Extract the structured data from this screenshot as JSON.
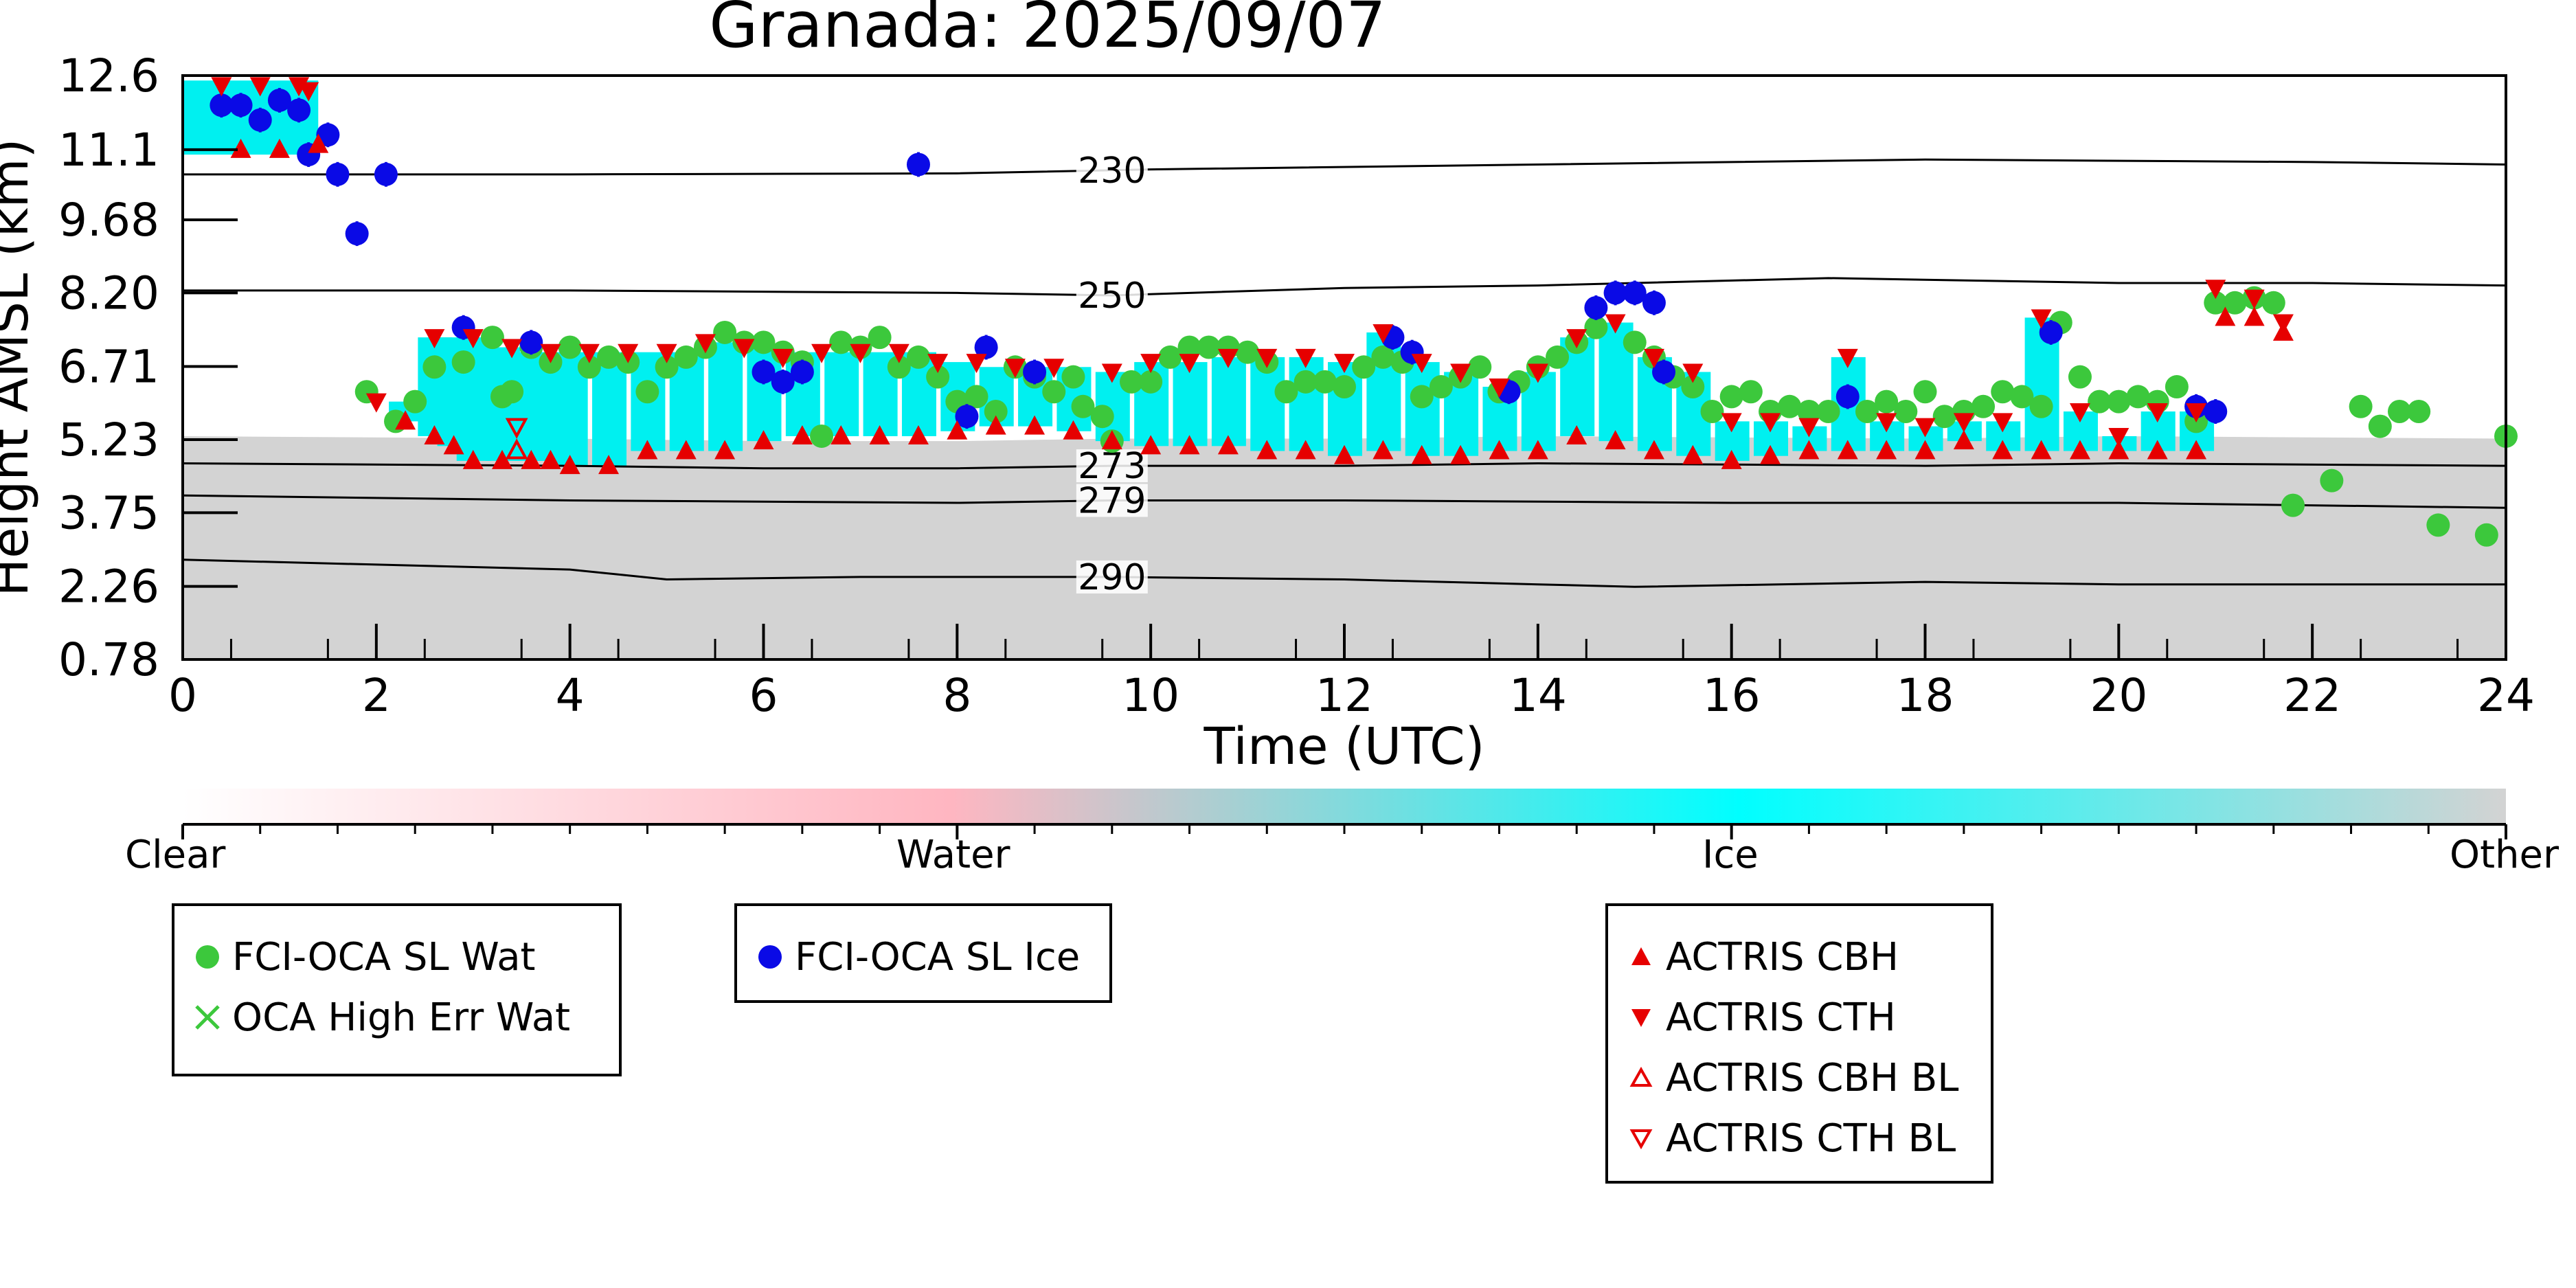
{
  "chart_data": {
    "type": "scatter",
    "title": "Granada: 2025/09/07",
    "xlabel": "Time (UTC)",
    "ylabel": "Height AMSL (km)",
    "xlim": [
      0,
      24
    ],
    "ylim": [
      0.78,
      12.6
    ],
    "xticks": [
      "0",
      "2",
      "4",
      "6",
      "8",
      "10",
      "12",
      "14",
      "16",
      "18",
      "20",
      "22",
      "24"
    ],
    "yticks": [
      "0.78",
      "2.26",
      "3.75",
      "5.23",
      "6.71",
      "8.20",
      "9.68",
      "11.1",
      "12.6"
    ],
    "isotherms": [
      {
        "label": "230",
        "points": [
          [
            0,
            10.6
          ],
          [
            4,
            10.6
          ],
          [
            8,
            10.62
          ],
          [
            10,
            10.7
          ],
          [
            14,
            10.8
          ],
          [
            18,
            10.9
          ],
          [
            22,
            10.85
          ],
          [
            24,
            10.8
          ]
        ]
      },
      {
        "label": "250",
        "points": [
          [
            0,
            8.25
          ],
          [
            4,
            8.25
          ],
          [
            8,
            8.2
          ],
          [
            9.6,
            8.15
          ],
          [
            12,
            8.3
          ],
          [
            14,
            8.35
          ],
          [
            17,
            8.5
          ],
          [
            20,
            8.4
          ],
          [
            22,
            8.4
          ],
          [
            24,
            8.35
          ]
        ]
      },
      {
        "label": "273",
        "points": [
          [
            0,
            4.75
          ],
          [
            4,
            4.7
          ],
          [
            6,
            4.65
          ],
          [
            8,
            4.65
          ],
          [
            9.6,
            4.7
          ],
          [
            12,
            4.7
          ],
          [
            14,
            4.75
          ],
          [
            18,
            4.7
          ],
          [
            20,
            4.75
          ],
          [
            24,
            4.7
          ]
        ]
      },
      {
        "label": "279",
        "points": [
          [
            0,
            4.1
          ],
          [
            4,
            4.0
          ],
          [
            8,
            3.95
          ],
          [
            9.6,
            4.0
          ],
          [
            12,
            4.0
          ],
          [
            16,
            3.95
          ],
          [
            20,
            3.95
          ],
          [
            24,
            3.85
          ]
        ]
      },
      {
        "label": "290",
        "points": [
          [
            0,
            2.8
          ],
          [
            2,
            2.7
          ],
          [
            4,
            2.6
          ],
          [
            5,
            2.4
          ],
          [
            7,
            2.45
          ],
          [
            9.6,
            2.45
          ],
          [
            12,
            2.4
          ],
          [
            14,
            2.3
          ],
          [
            15,
            2.25
          ],
          [
            18,
            2.35
          ],
          [
            20,
            2.3
          ],
          [
            24,
            2.3
          ]
        ]
      }
    ],
    "series": [
      {
        "name": "FCI-OCA SL Wat",
        "marker": "circle",
        "color": "#3cc83c",
        "points": [
          [
            1.9,
            6.2
          ],
          [
            2.2,
            5.6
          ],
          [
            2.4,
            6.0
          ],
          [
            2.6,
            6.7
          ],
          [
            2.9,
            6.8
          ],
          [
            3.2,
            7.3
          ],
          [
            3.3,
            6.1
          ],
          [
            3.4,
            6.2
          ],
          [
            3.6,
            7.1
          ],
          [
            3.8,
            6.8
          ],
          [
            4.0,
            7.1
          ],
          [
            4.2,
            6.7
          ],
          [
            4.4,
            6.9
          ],
          [
            4.6,
            6.8
          ],
          [
            4.8,
            6.2
          ],
          [
            5.0,
            6.7
          ],
          [
            5.2,
            6.9
          ],
          [
            5.4,
            7.1
          ],
          [
            5.6,
            7.4
          ],
          [
            5.8,
            7.2
          ],
          [
            6.0,
            7.2
          ],
          [
            6.2,
            7.0
          ],
          [
            6.4,
            6.8
          ],
          [
            6.6,
            5.3
          ],
          [
            6.8,
            7.2
          ],
          [
            7.0,
            7.1
          ],
          [
            7.2,
            7.3
          ],
          [
            7.4,
            6.7
          ],
          [
            7.6,
            6.9
          ],
          [
            7.8,
            6.5
          ],
          [
            8.0,
            6.0
          ],
          [
            8.2,
            6.1
          ],
          [
            8.4,
            5.8
          ],
          [
            8.6,
            6.7
          ],
          [
            8.8,
            6.5
          ],
          [
            9.0,
            6.2
          ],
          [
            9.2,
            6.5
          ],
          [
            9.3,
            5.9
          ],
          [
            9.5,
            5.7
          ],
          [
            9.6,
            5.2
          ],
          [
            9.8,
            6.4
          ],
          [
            10.0,
            6.4
          ],
          [
            10.2,
            6.9
          ],
          [
            10.4,
            7.1
          ],
          [
            10.6,
            7.1
          ],
          [
            10.8,
            7.1
          ],
          [
            11.0,
            7.0
          ],
          [
            11.2,
            6.8
          ],
          [
            11.4,
            6.2
          ],
          [
            11.6,
            6.4
          ],
          [
            11.8,
            6.4
          ],
          [
            12.0,
            6.3
          ],
          [
            12.2,
            6.7
          ],
          [
            12.4,
            6.9
          ],
          [
            12.6,
            6.8
          ],
          [
            12.8,
            6.1
          ],
          [
            13.0,
            6.3
          ],
          [
            13.2,
            6.5
          ],
          [
            13.4,
            6.7
          ],
          [
            13.6,
            6.2
          ],
          [
            13.8,
            6.4
          ],
          [
            14.0,
            6.7
          ],
          [
            14.2,
            6.9
          ],
          [
            14.4,
            7.2
          ],
          [
            14.6,
            7.5
          ],
          [
            15.0,
            7.2
          ],
          [
            15.2,
            6.9
          ],
          [
            15.4,
            6.5
          ],
          [
            15.6,
            6.3
          ],
          [
            15.8,
            5.8
          ],
          [
            16.0,
            6.1
          ],
          [
            16.2,
            6.2
          ],
          [
            16.4,
            5.8
          ],
          [
            16.6,
            5.9
          ],
          [
            16.8,
            5.8
          ],
          [
            17.0,
            5.8
          ],
          [
            17.4,
            5.8
          ],
          [
            17.6,
            6.0
          ],
          [
            17.8,
            5.8
          ],
          [
            18.0,
            6.2
          ],
          [
            18.2,
            5.7
          ],
          [
            18.4,
            5.8
          ],
          [
            18.6,
            5.9
          ],
          [
            18.8,
            6.2
          ],
          [
            19.0,
            6.1
          ],
          [
            19.2,
            5.9
          ],
          [
            19.4,
            7.6
          ],
          [
            19.6,
            6.5
          ],
          [
            19.8,
            6.0
          ],
          [
            20.0,
            6.0
          ],
          [
            20.2,
            6.1
          ],
          [
            20.4,
            6.0
          ],
          [
            20.6,
            6.3
          ],
          [
            20.8,
            5.6
          ],
          [
            21.0,
            8.0
          ],
          [
            21.2,
            8.0
          ],
          [
            21.4,
            8.1
          ],
          [
            21.6,
            8.0
          ],
          [
            21.8,
            3.9
          ],
          [
            22.2,
            4.4
          ],
          [
            22.5,
            5.9
          ],
          [
            22.7,
            5.5
          ],
          [
            22.9,
            5.8
          ],
          [
            23.1,
            5.8
          ],
          [
            23.3,
            3.5
          ],
          [
            23.8,
            3.3
          ],
          [
            24.0,
            5.3
          ]
        ]
      },
      {
        "name": "OCA High Err Wat",
        "marker": "x",
        "color": "#3cc83c",
        "points": []
      },
      {
        "name": "FCI-OCA SL Ice",
        "marker": "circle",
        "color": "#0a0ae6",
        "points": [
          [
            0.4,
            12.0
          ],
          [
            0.6,
            12.0
          ],
          [
            0.8,
            11.7
          ],
          [
            1.0,
            12.1
          ],
          [
            1.2,
            11.9
          ],
          [
            1.3,
            11.0
          ],
          [
            1.5,
            11.4
          ],
          [
            1.6,
            10.6
          ],
          [
            1.8,
            9.4
          ],
          [
            2.1,
            10.6
          ],
          [
            2.9,
            7.5
          ],
          [
            3.6,
            7.2
          ],
          [
            6.0,
            6.6
          ],
          [
            6.2,
            6.4
          ],
          [
            6.4,
            6.6
          ],
          [
            7.6,
            10.8
          ],
          [
            8.1,
            5.7
          ],
          [
            8.3,
            7.1
          ],
          [
            8.8,
            6.6
          ],
          [
            12.5,
            7.3
          ],
          [
            12.7,
            7.0
          ],
          [
            13.7,
            6.2
          ],
          [
            14.6,
            7.9
          ],
          [
            14.8,
            8.2
          ],
          [
            15.0,
            8.2
          ],
          [
            15.2,
            8.0
          ],
          [
            15.3,
            6.6
          ],
          [
            17.2,
            6.1
          ],
          [
            19.3,
            7.4
          ],
          [
            20.8,
            5.9
          ],
          [
            21.0,
            5.8
          ]
        ]
      },
      {
        "name": "ACTRIS CBH",
        "marker": "triangle-up",
        "color": "#e60000",
        "points": [
          [
            0.6,
            11.1
          ],
          [
            1.0,
            11.1
          ],
          [
            1.4,
            11.2
          ],
          [
            2.3,
            5.6
          ],
          [
            2.6,
            5.3
          ],
          [
            2.8,
            5.1
          ],
          [
            3.0,
            4.8
          ],
          [
            3.3,
            4.8
          ],
          [
            3.6,
            4.8
          ],
          [
            3.8,
            4.8
          ],
          [
            4.0,
            4.7
          ],
          [
            4.4,
            4.7
          ],
          [
            4.8,
            5.0
          ],
          [
            5.2,
            5.0
          ],
          [
            5.6,
            5.0
          ],
          [
            6.0,
            5.2
          ],
          [
            6.4,
            5.3
          ],
          [
            6.8,
            5.3
          ],
          [
            7.2,
            5.3
          ],
          [
            7.6,
            5.3
          ],
          [
            8.0,
            5.4
          ],
          [
            8.4,
            5.5
          ],
          [
            8.8,
            5.5
          ],
          [
            9.2,
            5.4
          ],
          [
            9.6,
            5.2
          ],
          [
            10.0,
            5.1
          ],
          [
            10.4,
            5.1
          ],
          [
            10.8,
            5.1
          ],
          [
            11.2,
            5.0
          ],
          [
            11.6,
            5.0
          ],
          [
            12.0,
            4.9
          ],
          [
            12.4,
            5.0
          ],
          [
            12.8,
            4.9
          ],
          [
            13.2,
            4.9
          ],
          [
            13.6,
            5.0
          ],
          [
            14.0,
            5.0
          ],
          [
            14.4,
            5.3
          ],
          [
            14.8,
            5.2
          ],
          [
            15.2,
            5.0
          ],
          [
            15.6,
            4.9
          ],
          [
            16.0,
            4.8
          ],
          [
            16.4,
            4.9
          ],
          [
            16.8,
            5.0
          ],
          [
            17.2,
            5.0
          ],
          [
            17.6,
            5.0
          ],
          [
            18.0,
            5.0
          ],
          [
            18.4,
            5.2
          ],
          [
            18.8,
            5.0
          ],
          [
            19.2,
            5.0
          ],
          [
            19.6,
            5.0
          ],
          [
            20.0,
            5.0
          ],
          [
            20.4,
            5.0
          ],
          [
            20.8,
            5.0
          ],
          [
            21.1,
            7.7
          ],
          [
            21.4,
            7.7
          ],
          [
            21.7,
            7.4
          ]
        ]
      },
      {
        "name": "ACTRIS CTH",
        "marker": "triangle-down",
        "color": "#e60000",
        "points": [
          [
            0.4,
            12.4
          ],
          [
            0.8,
            12.4
          ],
          [
            1.2,
            12.4
          ],
          [
            1.3,
            12.3
          ],
          [
            2.0,
            6.0
          ],
          [
            2.6,
            7.3
          ],
          [
            3.0,
            7.3
          ],
          [
            3.4,
            7.1
          ],
          [
            3.8,
            7.0
          ],
          [
            4.2,
            7.0
          ],
          [
            4.6,
            7.0
          ],
          [
            5.0,
            7.0
          ],
          [
            5.4,
            7.2
          ],
          [
            5.8,
            7.1
          ],
          [
            6.2,
            6.9
          ],
          [
            6.6,
            7.0
          ],
          [
            7.0,
            7.0
          ],
          [
            7.4,
            7.0
          ],
          [
            7.8,
            6.8
          ],
          [
            8.2,
            6.8
          ],
          [
            8.6,
            6.7
          ],
          [
            9.0,
            6.7
          ],
          [
            9.6,
            6.6
          ],
          [
            10.0,
            6.8
          ],
          [
            10.4,
            6.8
          ],
          [
            10.8,
            6.9
          ],
          [
            11.2,
            6.9
          ],
          [
            11.6,
            6.9
          ],
          [
            12.0,
            6.8
          ],
          [
            12.4,
            7.4
          ],
          [
            12.8,
            6.8
          ],
          [
            13.2,
            6.6
          ],
          [
            13.6,
            6.3
          ],
          [
            14.0,
            6.6
          ],
          [
            14.4,
            7.3
          ],
          [
            14.8,
            7.6
          ],
          [
            15.2,
            6.9
          ],
          [
            15.6,
            6.6
          ],
          [
            16.0,
            5.6
          ],
          [
            16.4,
            5.6
          ],
          [
            16.8,
            5.5
          ],
          [
            17.2,
            6.9
          ],
          [
            17.6,
            5.6
          ],
          [
            18.0,
            5.5
          ],
          [
            18.4,
            5.6
          ],
          [
            18.8,
            5.6
          ],
          [
            19.2,
            7.7
          ],
          [
            19.6,
            5.8
          ],
          [
            20.0,
            5.3
          ],
          [
            20.4,
            5.8
          ],
          [
            20.8,
            5.8
          ],
          [
            21.0,
            8.3
          ],
          [
            21.4,
            8.1
          ],
          [
            21.7,
            7.6
          ]
        ]
      },
      {
        "name": "ACTRIS CBH BL",
        "marker": "triangle-up-open",
        "color": "#e60000",
        "points": [
          [
            3.45,
            5.0
          ]
        ]
      },
      {
        "name": "ACTRIS CTH BL",
        "marker": "triangle-down-open",
        "color": "#e60000",
        "points": [
          [
            3.45,
            5.5
          ]
        ]
      }
    ],
    "colorbar": {
      "labels": [
        "Clear",
        "Water",
        "Ice",
        "Other"
      ],
      "colors": [
        "#ffffff",
        "#ffb6c1",
        "#00ffff",
        "#d3d3d3"
      ]
    },
    "legend_groups": [
      [
        "FCI-OCA SL Wat",
        "OCA High Err Wat"
      ],
      [
        "FCI-OCA SL Ice"
      ],
      [
        "ACTRIS CBH",
        "ACTRIS CTH",
        "ACTRIS CBH BL",
        "ACTRIS CTH BL"
      ]
    ],
    "grid": false
  }
}
